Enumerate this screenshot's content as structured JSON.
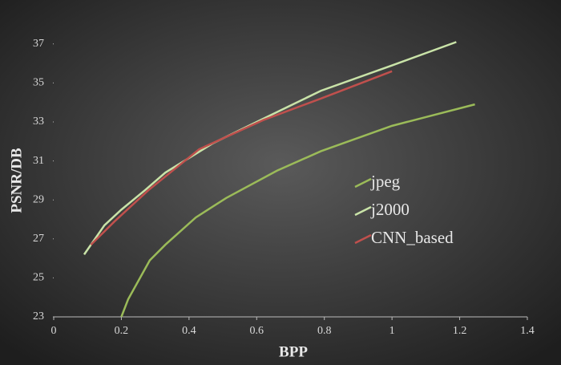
{
  "chart_data": {
    "type": "line",
    "x_label": "BPP",
    "y_label": "PSNR/DB",
    "xlim": [
      0,
      1.4
    ],
    "xticks": [
      0,
      0.2,
      0.4,
      0.6,
      0.8,
      1,
      1.2,
      1.4
    ],
    "ylim": [
      23,
      38
    ],
    "yticks": [
      23,
      25,
      27,
      29,
      31,
      33,
      35,
      37
    ],
    "series": [
      {
        "name": "jpeg",
        "color": "#9bbb59",
        "x": [
          0.2,
          0.22,
          0.284,
          0.33,
          0.42,
          0.51,
          0.66,
          0.79,
          1.0,
          1.245
        ],
        "values": [
          23,
          23.9,
          25.9,
          26.7,
          28.1,
          29.1,
          30.5,
          31.5,
          32.8,
          33.9
        ]
      },
      {
        "name": "j2000",
        "color": "#c9e3a8",
        "x": [
          0.09,
          0.15,
          0.2,
          0.27,
          0.33,
          0.47,
          0.6,
          0.79,
          1.0,
          1.19
        ],
        "values": [
          26.2,
          27.7,
          28.5,
          29.5,
          30.4,
          31.9,
          33.0,
          34.6,
          35.9,
          37.1
        ]
      },
      {
        "name": "CNN_based",
        "color": "#c0504d",
        "x": [
          0.11,
          0.18,
          0.28,
          0.43,
          0.62,
          0.79,
          1.0
        ],
        "values": [
          26.7,
          27.9,
          29.5,
          31.6,
          33.1,
          34.2,
          35.6
        ]
      }
    ]
  }
}
